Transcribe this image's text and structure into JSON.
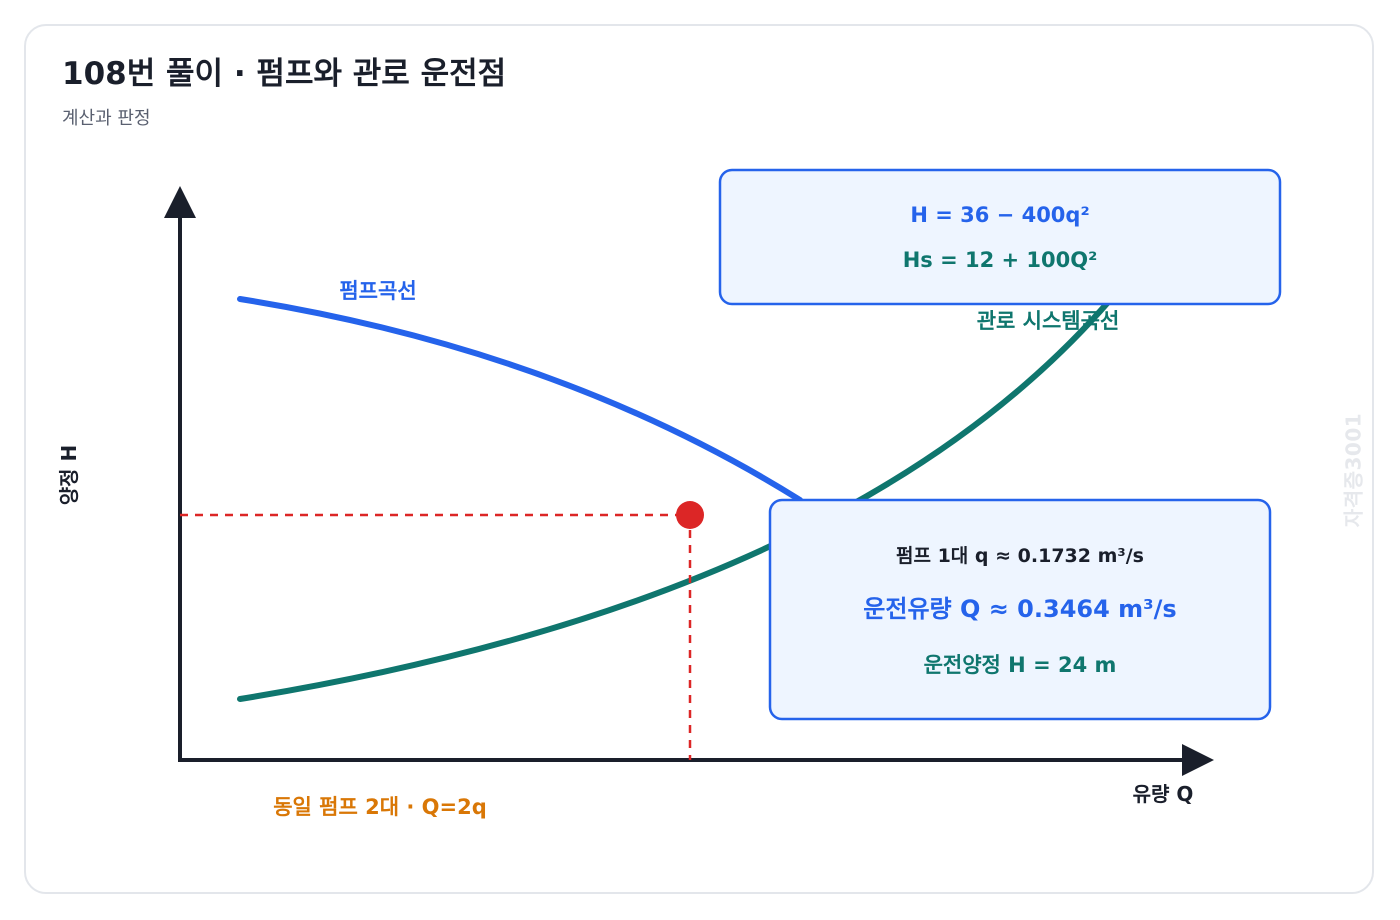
{
  "header": {
    "title": "108번 풀이 · 펌프와 관로 운전점",
    "subtitle": "계산과 판정"
  },
  "axes": {
    "y_label": "양정 H",
    "x_label": "유량 Q"
  },
  "curves": {
    "pump_label": "펌프곡선",
    "system_label": "관로 시스템곡선"
  },
  "equations": {
    "pump": "H = 36 − 400q²",
    "system": "Hs = 12 + 100Q²"
  },
  "results": {
    "single_pump": "펌프 1대 q ≈ 0.1732 m³/s",
    "flow": "운전유량 Q ≈ 0.3464 m³/s",
    "head": "운전양정 H = 24 m"
  },
  "note": "동일 펌프 2대 · Q=2q",
  "watermark": "자격증3001",
  "colors": {
    "pump": "#2563eb",
    "system": "#0f766e",
    "operating_point": "#dc2626",
    "note": "#d97706",
    "axis": "#1a1f2b",
    "box_fill": "#eef5ff",
    "box_border": "#2563eb"
  }
}
